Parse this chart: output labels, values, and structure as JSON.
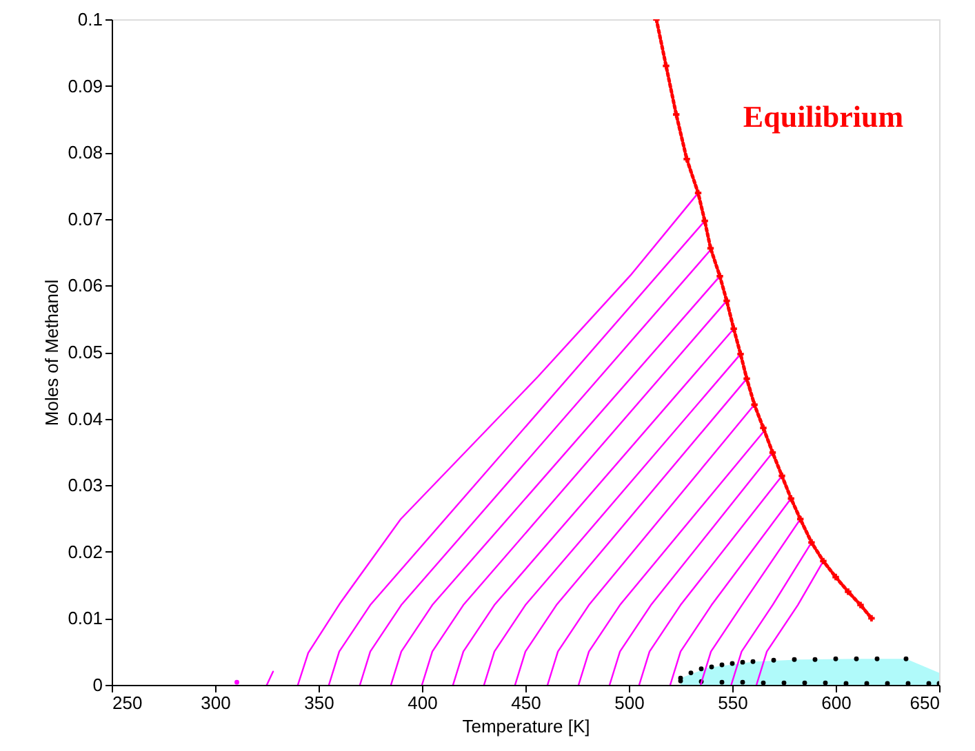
{
  "chart_data": {
    "type": "line",
    "xlabel": "Temperature [K]",
    "ylabel": "Moles of Methanol",
    "xlim": [
      250,
      650
    ],
    "ylim": [
      0,
      0.1
    ],
    "xticks": [
      250,
      300,
      350,
      400,
      450,
      500,
      550,
      600,
      650
    ],
    "yticks": [
      0,
      0.01,
      0.02,
      0.03,
      0.04,
      0.05,
      0.06,
      0.07,
      0.08,
      0.09,
      0.1
    ],
    "grid": false,
    "marker": "none",
    "line_style": "solid",
    "series": [
      {
        "type": "area",
        "color": "#b0fafa",
        "x": [
          525,
          538.5,
          560.7,
          582.9,
          610,
          634,
          650
        ],
        "values": [
          0.001,
          0.0026,
          0.0035,
          0.0038,
          0.0039,
          0.0039,
          0.0018
        ]
      },
      {
        "type": "scatter",
        "color": "#000000",
        "marker": "circle",
        "x": [
          525,
          530,
          535,
          540,
          545,
          550,
          555,
          560,
          570,
          580,
          590,
          600,
          610,
          620,
          634
        ],
        "values": [
          0.001,
          0.0018,
          0.0024,
          0.0027,
          0.003,
          0.0032,
          0.0034,
          0.0035,
          0.0037,
          0.0038,
          0.0038,
          0.0039,
          0.0039,
          0.0039,
          0.0039
        ]
      },
      {
        "type": "scatter",
        "color": "#000000",
        "marker": "circle",
        "x": [
          525,
          535,
          545,
          555,
          565,
          575,
          585,
          595,
          605,
          615,
          625,
          635,
          645,
          650
        ],
        "values": [
          0.0006,
          0.0005,
          0.0004,
          0.0004,
          0.0003,
          0.0003,
          0.0003,
          0.0003,
          0.0002,
          0.0002,
          0.0002,
          0.0002,
          0.0002,
          0.0002
        ]
      },
      {
        "type": "scatter",
        "marker": "circle",
        "color": "#ff00ff",
        "x": [
          310.5
        ],
        "values": [
          0.0004
        ]
      },
      {
        "color": "#ff00ff",
        "x": [
          325,
          328
        ],
        "values": [
          0,
          0.002
        ]
      },
      {
        "color": "#ff00ff",
        "x": [
          340,
          345,
          360.7,
          389.7,
          456,
          500.7,
          533.5
        ],
        "values": [
          0,
          0.0048,
          0.0124,
          0.0249,
          0.0463,
          0.0615,
          0.0739
        ]
      },
      {
        "color": "#ff00ff",
        "x": [
          355,
          360,
          375,
          536.7
        ],
        "values": [
          0,
          0.005,
          0.012,
          0.0697
        ]
      },
      {
        "color": "#ff00ff",
        "x": [
          370,
          375,
          390,
          540.2
        ],
        "values": [
          0,
          0.005,
          0.012,
          0.0656
        ]
      },
      {
        "color": "#ff00ff",
        "x": [
          385,
          390,
          405,
          544
        ],
        "values": [
          0,
          0.005,
          0.012,
          0.0614
        ]
      },
      {
        "color": "#ff00ff",
        "x": [
          400,
          405,
          420,
          547.3
        ],
        "values": [
          0,
          0.005,
          0.012,
          0.0577
        ]
      },
      {
        "color": "#ff00ff",
        "x": [
          415,
          420,
          435,
          550.7
        ],
        "values": [
          0,
          0.005,
          0.012,
          0.0535
        ]
      },
      {
        "color": "#ff00ff",
        "x": [
          430,
          435,
          450,
          554
        ],
        "values": [
          0,
          0.005,
          0.012,
          0.0497
        ]
      },
      {
        "color": "#ff00ff",
        "x": [
          445,
          450,
          465,
          557
        ],
        "values": [
          0,
          0.005,
          0.012,
          0.046
        ]
      },
      {
        "color": "#ff00ff",
        "x": [
          460.7,
          465.7,
          480.7,
          560.7
        ],
        "values": [
          0,
          0.005,
          0.012,
          0.0421
        ]
      },
      {
        "color": "#ff00ff",
        "x": [
          475.7,
          480.7,
          495.7,
          565
        ],
        "values": [
          0,
          0.005,
          0.012,
          0.038
        ]
      },
      {
        "color": "#ff00ff",
        "x": [
          490.7,
          495.7,
          510.7,
          569.5
        ],
        "values": [
          0,
          0.005,
          0.012,
          0.0349
        ]
      },
      {
        "color": "#ff00ff",
        "x": [
          505,
          510,
          525,
          574
        ],
        "values": [
          0,
          0.005,
          0.012,
          0.0314
        ]
      },
      {
        "color": "#ff00ff",
        "x": [
          520,
          525,
          540,
          578.4
        ],
        "values": [
          0,
          0.005,
          0.012,
          0.028
        ]
      },
      {
        "color": "#ff00ff",
        "x": [
          534.7,
          539.7,
          554.7,
          582.9
        ],
        "values": [
          0,
          0.005,
          0.012,
          0.0249
        ]
      },
      {
        "color": "#ff00ff",
        "x": [
          549.5,
          554.5,
          569.5,
          588.3
        ],
        "values": [
          0,
          0.005,
          0.012,
          0.0214
        ]
      },
      {
        "color": "#ff00ff",
        "x": [
          561.7,
          566.7,
          581.7,
          594
        ],
        "values": [
          0,
          0.005,
          0.012,
          0.0186
        ]
      },
      {
        "name": "Equilibrium",
        "color": "#ff0000",
        "marker": "cross",
        "line_style": "dotted",
        "x": [
          513.3,
          518,
          522.9,
          528,
          533.5,
          536.7,
          539.5,
          544,
          547.3,
          550.7,
          554,
          557,
          560.7,
          565,
          569.5,
          574,
          578.4,
          582.9,
          588.3,
          594,
          600,
          606,
          612,
          617.3
        ],
        "values": [
          0.1,
          0.093,
          0.0857,
          0.079,
          0.0739,
          0.0697,
          0.0656,
          0.0614,
          0.0577,
          0.0535,
          0.0497,
          0.046,
          0.0421,
          0.0386,
          0.0349,
          0.0314,
          0.028,
          0.0249,
          0.0214,
          0.0186,
          0.0162,
          0.014,
          0.012,
          0.01
        ]
      }
    ]
  }
}
